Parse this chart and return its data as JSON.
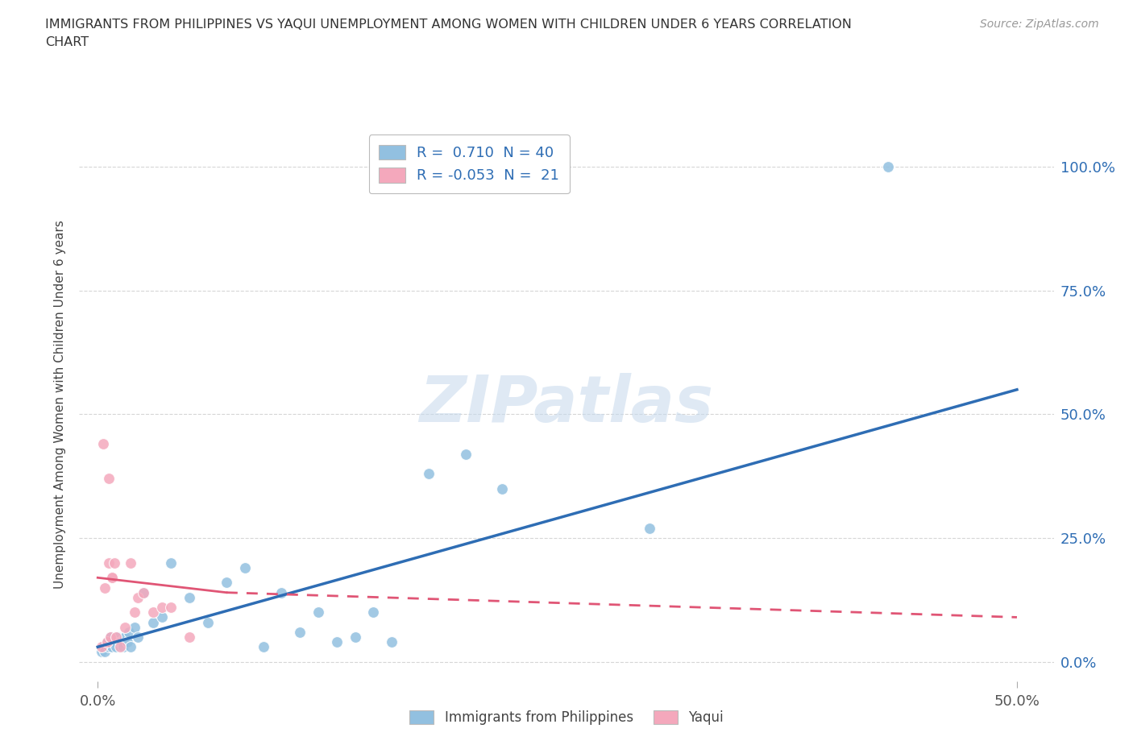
{
  "title_line1": "IMMIGRANTS FROM PHILIPPINES VS YAQUI UNEMPLOYMENT AMONG WOMEN WITH CHILDREN UNDER 6 YEARS CORRELATION",
  "title_line2": "CHART",
  "source": "Source: ZipAtlas.com",
  "ylabel_label": "Unemployment Among Women with Children Under 6 years",
  "ytick_labels": [
    "0.0%",
    "25.0%",
    "50.0%",
    "75.0%",
    "100.0%"
  ],
  "ytick_values": [
    0,
    25,
    50,
    75,
    100
  ],
  "xtick_labels": [
    "0.0%",
    "50.0%"
  ],
  "xtick_values": [
    0,
    50
  ],
  "xlim": [
    -1,
    52
  ],
  "ylim": [
    -4,
    108
  ],
  "blue_r": 0.71,
  "blue_n": 40,
  "pink_r": -0.053,
  "pink_n": 21,
  "blue_color": "#92C0E0",
  "pink_color": "#F4A8BC",
  "blue_line_color": "#2E6DB4",
  "pink_line_color": "#E05575",
  "watermark": "ZIPatlas",
  "legend_label_blue": "Immigrants from Philippines",
  "legend_label_pink": "Yaqui",
  "blue_scatter_x": [
    0.2,
    0.3,
    0.4,
    0.5,
    0.6,
    0.7,
    0.8,
    0.9,
    1.0,
    1.1,
    1.2,
    1.3,
    1.4,
    1.5,
    1.6,
    1.7,
    1.8,
    2.0,
    2.2,
    2.5,
    3.0,
    3.5,
    4.0,
    5.0,
    6.0,
    7.0,
    8.0,
    9.0,
    10.0,
    11.0,
    12.0,
    13.0,
    14.0,
    15.0,
    16.0,
    18.0,
    20.0,
    22.0,
    30.0,
    43.0
  ],
  "blue_scatter_y": [
    2,
    3,
    2,
    4,
    3,
    5,
    3,
    4,
    3,
    5,
    4,
    4,
    3,
    5,
    4,
    6,
    3,
    7,
    5,
    14,
    8,
    9,
    20,
    13,
    8,
    16,
    19,
    3,
    14,
    6,
    10,
    4,
    5,
    10,
    4,
    38,
    42,
    35,
    27,
    100
  ],
  "pink_scatter_x": [
    0.2,
    0.3,
    0.4,
    0.5,
    0.6,
    0.7,
    0.8,
    0.9,
    1.0,
    1.2,
    1.5,
    1.8,
    2.0,
    2.2,
    2.5,
    3.0,
    3.5,
    4.0,
    0.6,
    0.8,
    5.0
  ],
  "pink_scatter_y": [
    3,
    44,
    15,
    4,
    20,
    5,
    17,
    20,
    5,
    3,
    7,
    20,
    10,
    13,
    14,
    10,
    11,
    11,
    37,
    17,
    5
  ],
  "blue_line_x0": 0,
  "blue_line_x1": 50,
  "blue_line_y0": 3,
  "blue_line_y1": 55,
  "pink_line_solid_x0": 0,
  "pink_line_solid_x1": 7,
  "pink_line_y0": 17,
  "pink_line_y1": 14,
  "pink_line_dash_x0": 7,
  "pink_line_dash_x1": 50,
  "pink_line_dash_y0": 14,
  "pink_line_dash_y1": 9
}
